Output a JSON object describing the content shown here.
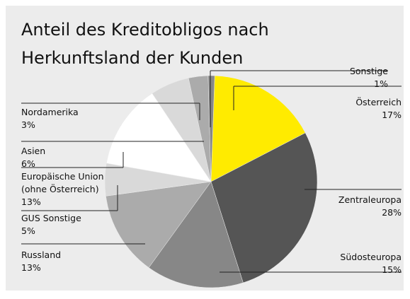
{
  "chart_data": {
    "type": "pie",
    "title": "Anteil des Kreditobligos nach Herkunftsland der Kunden",
    "categories": [
      "Österreich",
      "Zentraleuropa",
      "Südosteuropa",
      "Russland",
      "GUS Sonstige",
      "Europäische Union (ohne Österreich)",
      "Asien",
      "Nordamerika",
      "Sonstige"
    ],
    "values": [
      17,
      28,
      15,
      13,
      5,
      13,
      6,
      3,
      1
    ],
    "value_labels": [
      "17%",
      "28%",
      "15%",
      "13%",
      "5%",
      "13%",
      "6%",
      "3%",
      "1%"
    ],
    "colors": [
      "#ffeb00",
      "#555555",
      "#878787",
      "#ababab",
      "#d9d9d9",
      "#ffffff",
      "#d9d9d9",
      "#ababab",
      "#878787"
    ]
  }
}
